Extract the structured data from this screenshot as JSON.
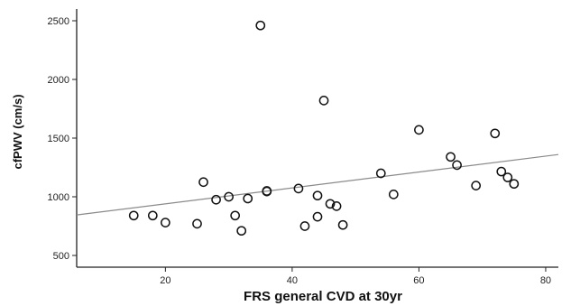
{
  "chart_data": {
    "type": "scatter",
    "xlabel": "FRS general CVD at 30yr",
    "ylabel": "cfPWV (cm/s)",
    "xlim": [
      6,
      82
    ],
    "ylim": [
      400,
      2600
    ],
    "xticks": [
      20,
      40,
      60,
      80
    ],
    "yticks": [
      500,
      1000,
      1500,
      2000,
      2500
    ],
    "grid": false,
    "colors": {
      "axis": "#222222",
      "marker": "#111111",
      "fit_line": "#8a8a8a",
      "background": "#ffffff"
    },
    "series": [
      {
        "marker": "open-circle",
        "points": [
          {
            "x": 15,
            "y": 840
          },
          {
            "x": 18,
            "y": 840
          },
          {
            "x": 20,
            "y": 780
          },
          {
            "x": 25,
            "y": 770
          },
          {
            "x": 26,
            "y": 1125
          },
          {
            "x": 28,
            "y": 975
          },
          {
            "x": 30,
            "y": 1000
          },
          {
            "x": 31,
            "y": 840
          },
          {
            "x": 32,
            "y": 710
          },
          {
            "x": 33,
            "y": 985
          },
          {
            "x": 35,
            "y": 2460
          },
          {
            "x": 36,
            "y": 1045
          },
          {
            "x": 36,
            "y": 1050
          },
          {
            "x": 41,
            "y": 1070
          },
          {
            "x": 42,
            "y": 750
          },
          {
            "x": 44,
            "y": 1010
          },
          {
            "x": 44,
            "y": 830
          },
          {
            "x": 45,
            "y": 1820
          },
          {
            "x": 46,
            "y": 940
          },
          {
            "x": 47,
            "y": 920
          },
          {
            "x": 48,
            "y": 760
          },
          {
            "x": 54,
            "y": 1200
          },
          {
            "x": 56,
            "y": 1020
          },
          {
            "x": 60,
            "y": 1570
          },
          {
            "x": 65,
            "y": 1340
          },
          {
            "x": 66,
            "y": 1270
          },
          {
            "x": 69,
            "y": 1095
          },
          {
            "x": 72,
            "y": 1540
          },
          {
            "x": 73,
            "y": 1215
          },
          {
            "x": 74,
            "y": 1165
          },
          {
            "x": 75,
            "y": 1110
          }
        ]
      }
    ],
    "fit_line": {
      "type": "linear",
      "points": [
        {
          "x": 6,
          "y": 845
        },
        {
          "x": 82,
          "y": 1360
        }
      ]
    }
  }
}
